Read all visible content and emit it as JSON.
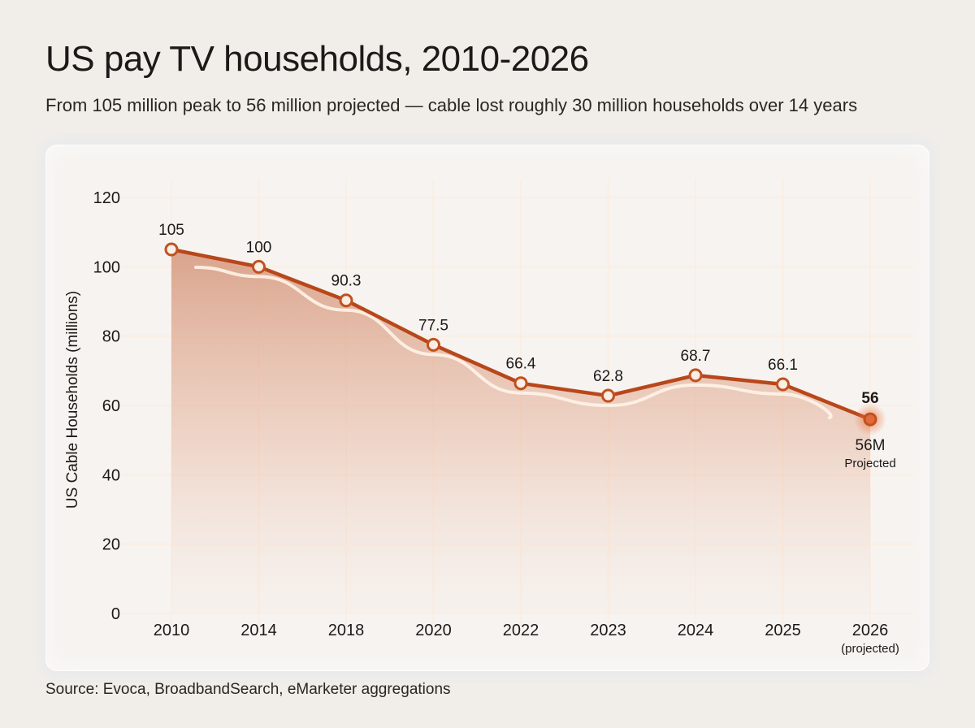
{
  "title": "US pay TV households, 2010-2026",
  "subtitle": "From 105 million peak to 56 million projected — cable lost roughly 30 million households over 14 years",
  "source": "Source: Evoca, BroadbandSearch, eMarketer aggregations",
  "colors": {
    "line": "#b8471a",
    "accent": "#e2693a",
    "background": "#f1eeea"
  },
  "chart_data": {
    "type": "line",
    "categories": [
      "2010",
      "2014",
      "2018",
      "2020",
      "2022",
      "2023",
      "2024",
      "2025",
      "2026"
    ],
    "category_sublabels": [
      "",
      "",
      "",
      "",
      "",
      "",
      "",
      "",
      "(projected)"
    ],
    "values": [
      105,
      100,
      90.3,
      77.5,
      66.4,
      62.8,
      68.7,
      66.1,
      56
    ],
    "data_labels": [
      "105",
      "100",
      "90.3",
      "77.5",
      "66.4",
      "62.8",
      "68.7",
      "66.1",
      "56"
    ],
    "ylabel": "US Cable Households (millions)",
    "xlabel": "",
    "ylim": [
      0,
      120
    ],
    "yticks": [
      0,
      20,
      40,
      60,
      80,
      100,
      120
    ],
    "grid": true,
    "area_fill": true,
    "highlight": {
      "index": 8,
      "label": "56M",
      "note": "Projected"
    }
  }
}
